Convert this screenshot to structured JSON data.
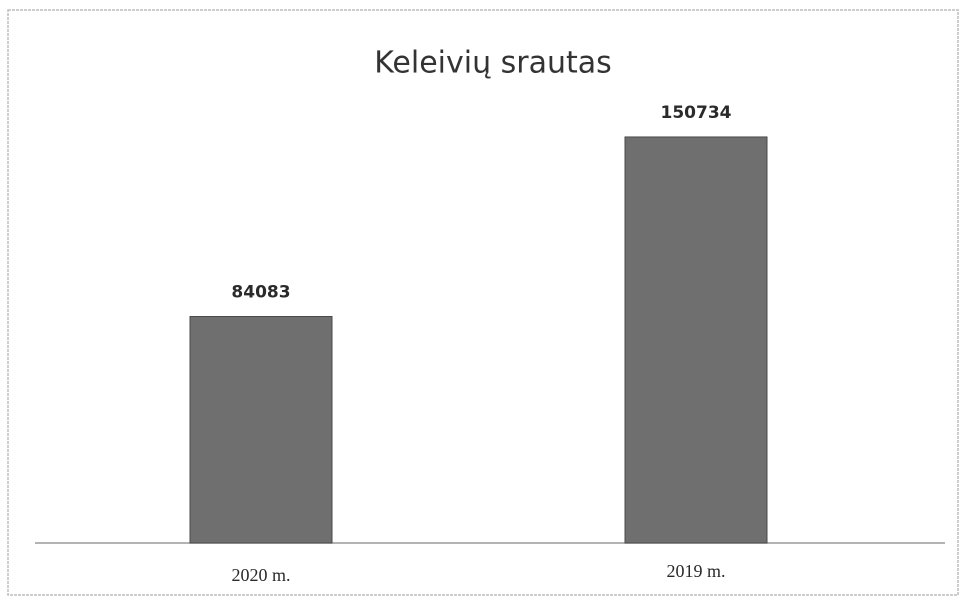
{
  "chart_data": {
    "type": "bar",
    "title": "Keleivių srautas",
    "categories": [
      "2020 m.",
      "2019 m."
    ],
    "values": [
      84083,
      150734
    ],
    "color": "#6f6f6f",
    "ylim": [
      0,
      160000
    ],
    "grid": false
  }
}
